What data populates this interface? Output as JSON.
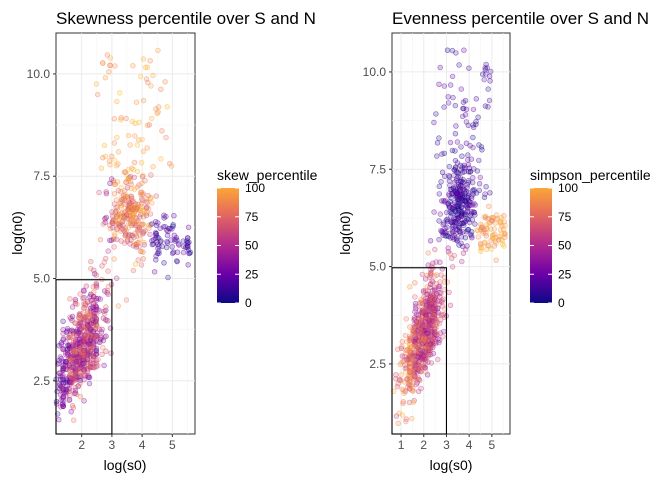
{
  "chart_data": [
    {
      "type": "scatter",
      "title": "Skewness percentile over S and N",
      "xlabel": "log(s0)",
      "ylabel": "log(n0)",
      "xlim": [
        1.15,
        5.75
      ],
      "ylim": [
        1.2,
        11.0
      ],
      "xticks": [
        2,
        3,
        4,
        5
      ],
      "yticks": [
        2.5,
        5.0,
        7.5,
        10.0
      ],
      "ytick_labels": [
        "2.5",
        "5.0",
        "7.5",
        "10.0"
      ],
      "grid": true,
      "box": {
        "x0": 1.15,
        "x1": 3.0,
        "y0": 1.2,
        "y1": 4.97
      },
      "legend": {
        "title": "skew_percentile",
        "ticks": [
          "100",
          "75",
          "50",
          "25",
          "0"
        ],
        "placement": "right"
      },
      "colors": {
        "low": "#0d0887",
        "mid": "#cc4778",
        "high": "#f89540"
      }
    },
    {
      "type": "scatter",
      "title": "Evenness percentile over S and N",
      "xlabel": "log(s0)",
      "ylabel": "log(n0)",
      "xlim": [
        0.6,
        5.8
      ],
      "ylim": [
        0.7,
        11.0
      ],
      "xticks": [
        1,
        2,
        3,
        4,
        5
      ],
      "yticks": [
        2.5,
        5.0,
        7.5,
        10.0
      ],
      "ytick_labels": [
        "2.5",
        "5.0",
        "7.5",
        "10.0"
      ],
      "grid": true,
      "box": {
        "x0": 0.6,
        "x1": 3.0,
        "y0": 0.7,
        "y1": 4.97
      },
      "legend": {
        "title": "simpson_percentile",
        "ticks": [
          "100",
          "75",
          "50",
          "25",
          "0"
        ],
        "placement": "right"
      },
      "colors": {
        "low": "#0d0887",
        "mid": "#cc4778",
        "high": "#f89540"
      }
    }
  ]
}
